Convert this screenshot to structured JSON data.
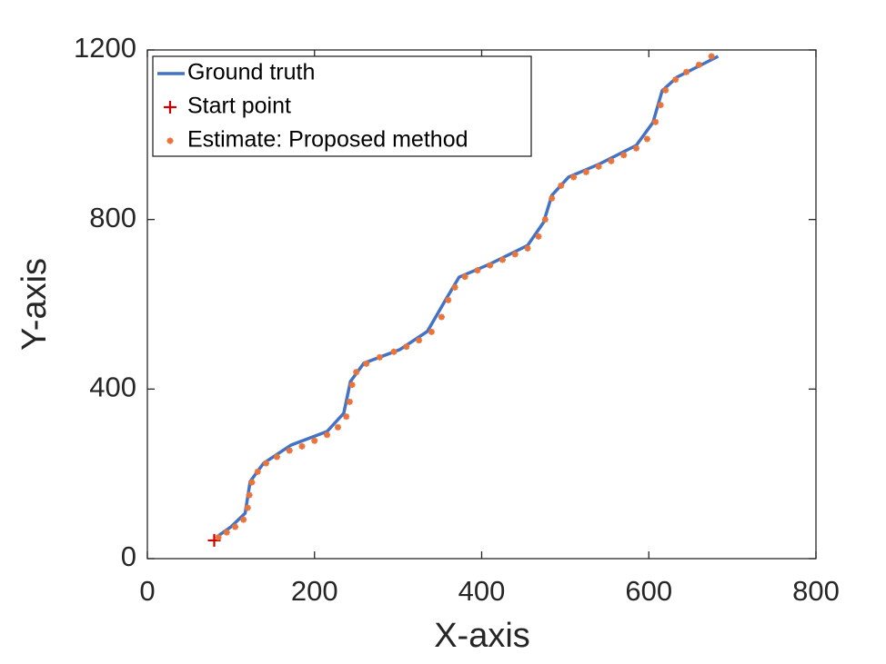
{
  "chart_data": {
    "type": "line",
    "xlabel": "X-axis",
    "ylabel": "Y-axis",
    "xlim": [
      0,
      800
    ],
    "ylim": [
      0,
      1200
    ],
    "xticks": [
      0,
      200,
      400,
      600,
      800
    ],
    "yticks": [
      0,
      400,
      800,
      1200
    ],
    "legend": "upper left",
    "series": [
      {
        "name": "Ground truth",
        "color": "#4472c4",
        "style": "line",
        "x": [
          85,
          100,
          117,
          123,
          139,
          172,
          215,
          235,
          243,
          259,
          302,
          335,
          357,
          373,
          411,
          455,
          474,
          484,
          504,
          542,
          585,
          605,
          616,
          634,
          683
        ],
        "values": [
          54,
          75,
          107,
          182,
          225,
          268,
          300,
          343,
          418,
          461,
          493,
          536,
          611,
          664,
          696,
          739,
          793,
          857,
          900,
          932,
          975,
          1029,
          1104,
          1136,
          1185
        ]
      },
      {
        "name": "Start point",
        "color": "#cc0000",
        "style": "plus",
        "x": [
          80
        ],
        "values": [
          43
        ]
      },
      {
        "name": "Estimate: Proposed method",
        "color": "#e8743b",
        "style": "star",
        "x": [
          85,
          95,
          105,
          115,
          120,
          122,
          125,
          132,
          142,
          155,
          170,
          185,
          200,
          215,
          228,
          238,
          242,
          245,
          250,
          262,
          278,
          295,
          310,
          325,
          340,
          352,
          360,
          368,
          380,
          395,
          410,
          425,
          440,
          455,
          468,
          476,
          484,
          495,
          510,
          525,
          540,
          555,
          570,
          585,
          598,
          608,
          614,
          620,
          632,
          645,
          660,
          675
        ],
        "values": [
          50,
          62,
          75,
          92,
          120,
          150,
          180,
          205,
          225,
          240,
          255,
          265,
          278,
          292,
          310,
          335,
          370,
          410,
          440,
          460,
          475,
          488,
          500,
          515,
          535,
          570,
          610,
          640,
          665,
          680,
          692,
          705,
          718,
          732,
          760,
          800,
          850,
          880,
          900,
          912,
          925,
          938,
          952,
          968,
          990,
          1030,
          1070,
          1105,
          1130,
          1148,
          1165,
          1185
        ]
      }
    ]
  }
}
